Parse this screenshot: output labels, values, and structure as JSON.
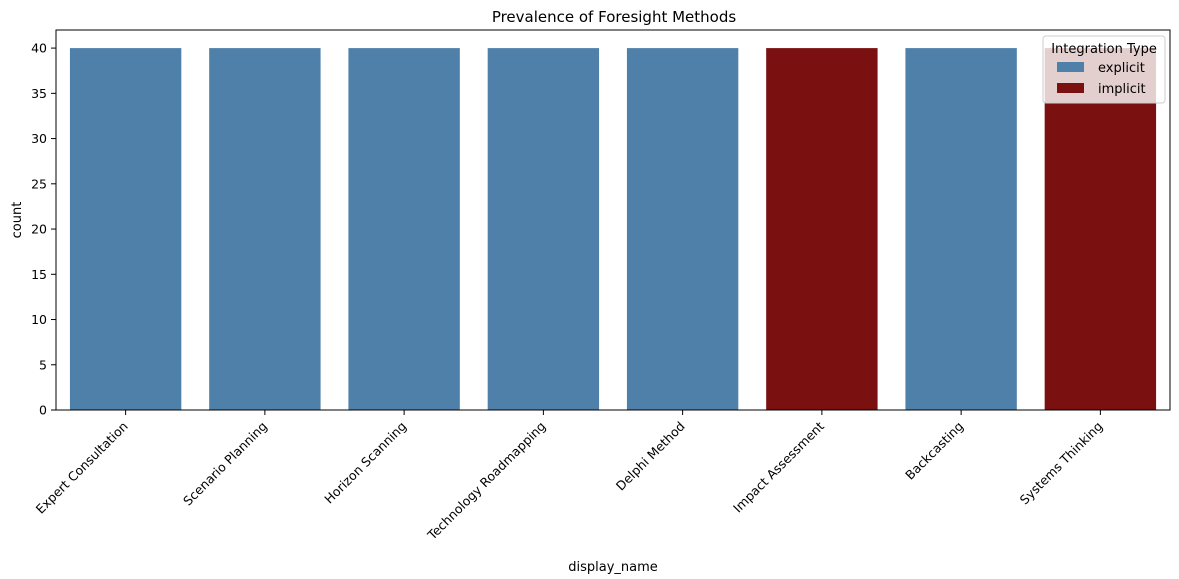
{
  "chart_data": {
    "type": "bar",
    "title": "Prevalence of Foresight Methods",
    "xlabel": "display_name",
    "ylabel": "count",
    "ylim": [
      0,
      42
    ],
    "yticks": [
      0,
      5,
      10,
      15,
      20,
      25,
      30,
      35,
      40
    ],
    "grid": false,
    "categories": [
      "Expert Consultation",
      "Scenario Planning",
      "Horizon Scanning",
      "Technology Roadmapping",
      "Delphi Method",
      "Impact Assessment",
      "Backcasting",
      "Systems Thinking"
    ],
    "values": [
      40,
      40,
      40,
      40,
      40,
      40,
      40,
      40
    ],
    "integration": [
      "explicit",
      "explicit",
      "explicit",
      "explicit",
      "explicit",
      "implicit",
      "explicit",
      "implicit"
    ],
    "legend": {
      "title": "Integration Type",
      "placement": "top-right",
      "entries": [
        {
          "label": "explicit",
          "color": "#4f80a9"
        },
        {
          "label": "implicit",
          "color": "#7b1010"
        }
      ]
    },
    "colors": {
      "explicit": "#4f80a9",
      "implicit": "#7b1010"
    }
  }
}
